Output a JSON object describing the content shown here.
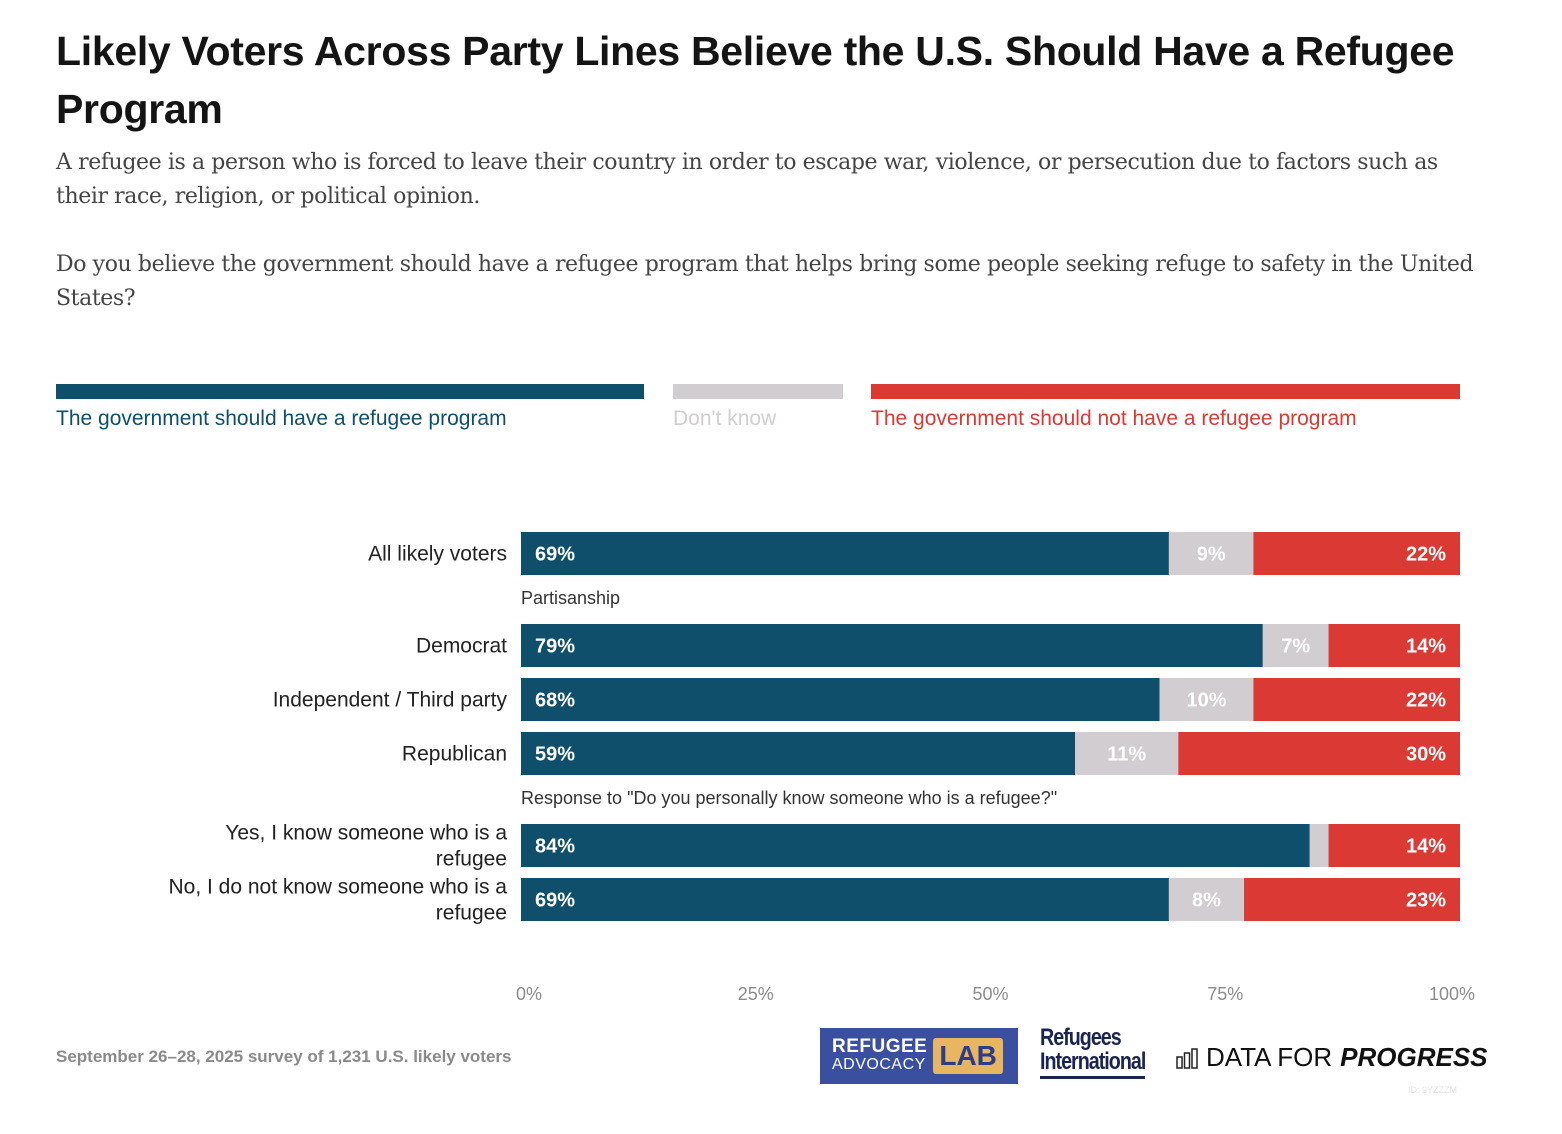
{
  "title": "Likely Voters Across Party Lines Believe the U.S. Should Have a Refugee Program",
  "subtitle": [
    "A refugee is a person who is forced to leave their country in order to escape war, violence, or persecution due to factors such as their race, religion, or political opinion.",
    "Do you believe the government should have a refugee program that helps bring some people seeking refuge to safety in the United States?"
  ],
  "colors": {
    "should_have": "#0f4f6c",
    "dont_know": "#d1cdd1",
    "should_not_have": "#db3a34"
  },
  "footer": {
    "note": "September 26–28, 2025 survey of 1,231 U.S. likely voters",
    "logos": {
      "ral_top": "REFUGEE",
      "ral_bottom": "ADVOCACY",
      "ral_lab": "LAB",
      "ri_line1": "Refugees",
      "ri_line2": "International",
      "dfp_regular": "DATA FOR",
      "dfp_bold": "PROGRESS"
    },
    "id": "ID: 9YZZZM"
  },
  "chart_data": {
    "type": "bar",
    "orientation": "horizontal-stacked-100",
    "title": "Likely Voters Across Party Lines Believe the U.S. Should Have a Refugee Program",
    "legend": [
      {
        "key": "should_have",
        "label": "The government should have a refugee program"
      },
      {
        "key": "dont_know",
        "label": "Don't know"
      },
      {
        "key": "should_not_have",
        "label": "The government should not have a refugee program"
      }
    ],
    "legend_position": "top",
    "groups": [
      {
        "label": "",
        "rows": [
          {
            "category": "All likely voters",
            "values": [
              69,
              9,
              22
            ]
          }
        ]
      },
      {
        "label": "Partisanship",
        "rows": [
          {
            "category": "Democrat",
            "values": [
              79,
              7,
              14
            ]
          },
          {
            "category": "Independent / Third party",
            "values": [
              68,
              10,
              22
            ]
          },
          {
            "category": "Republican",
            "values": [
              59,
              11,
              30
            ]
          }
        ]
      },
      {
        "label": "Response to \"Do you personally know someone who is a refugee?\"",
        "rows": [
          {
            "category": "Yes, I know someone who is a refugee",
            "values": [
              84,
              2,
              14
            ],
            "hide_labels": [
              false,
              true,
              false
            ]
          },
          {
            "category": "No, I do not know someone who is a refugee",
            "values": [
              69,
              8,
              23
            ]
          }
        ]
      }
    ],
    "xticks": [
      "0%",
      "25%",
      "50%",
      "75%",
      "100%"
    ],
    "xlim": [
      0,
      100
    ],
    "grid": false
  }
}
